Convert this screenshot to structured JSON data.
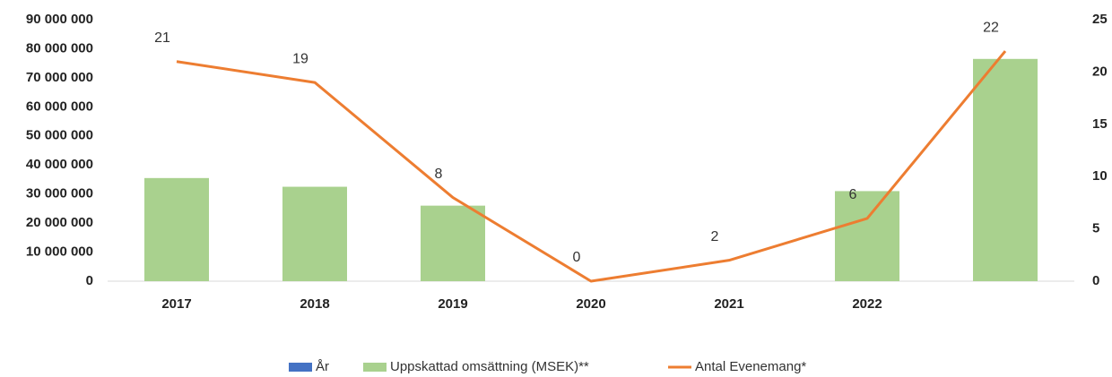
{
  "chart_data": {
    "type": "bar",
    "categories": [
      "2017",
      "2018",
      "2019",
      "2020",
      "2021",
      "2022",
      null
    ],
    "series": [
      {
        "name": "År",
        "color": "#4472c4",
        "values": [
          null,
          null,
          null,
          null,
          null,
          null,
          null
        ]
      },
      {
        "name": "Uppskattad omsättning (MSEK)**",
        "color": "#a9d18e",
        "values": [
          35500000,
          32500000,
          26000000,
          null,
          null,
          31000000,
          76500000
        ]
      },
      {
        "name": "Antal Evenemang*",
        "color": "#ed7d31",
        "type": "line",
        "axis": "y2",
        "values": [
          21,
          19,
          8,
          0,
          2,
          6,
          22
        ]
      }
    ],
    "ylim": [
      0,
      90000000
    ],
    "yticks": [
      0,
      {
        "value": 10000000,
        "label": "10 000 000"
      },
      {
        "value": 20000000,
        "label": "20 000 000"
      },
      {
        "value": 30000000,
        "label": "30 000 000"
      },
      {
        "value": 40000000,
        "label": "40 000 000"
      },
      {
        "value": 50000000,
        "label": "50 000 000"
      },
      {
        "value": 60000000,
        "label": "60 000 000"
      },
      {
        "value": 70000000,
        "label": "70 000 000"
      },
      {
        "value": 80000000,
        "label": "80 000 000"
      },
      {
        "value": 90000000,
        "label": "90 000 000"
      }
    ],
    "y2lim": [
      0,
      25
    ],
    "y2ticks": [
      0,
      5,
      10,
      15,
      20,
      25
    ],
    "legend": "bottom"
  }
}
